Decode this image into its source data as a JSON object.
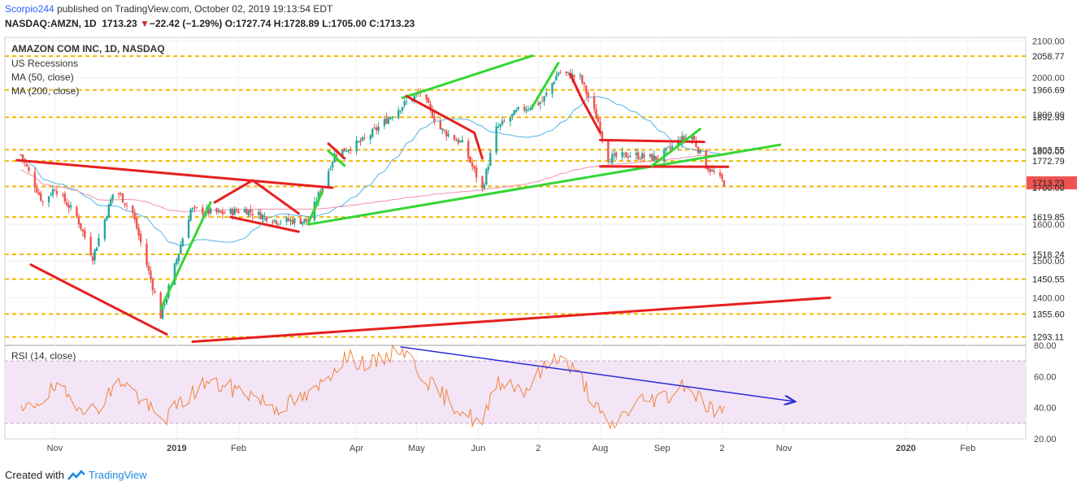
{
  "header": {
    "user": "Scorpio244",
    "published_text": "published on TradingView.com, October 02, 2019 19:13:54 EDT",
    "symbol": "NASDAQ:AMZN, 1D",
    "last": "1713.23",
    "change": "−22.42 (−1.29%)",
    "change_arrow": "▼",
    "o_label": "O:",
    "o_value": "1727.74",
    "h_label": "H:",
    "h_value": "1728.89",
    "l_label": "L:",
    "l_value": "1705.00",
    "c_label": "C:",
    "c_value": "1713.23"
  },
  "legend": {
    "title": "AMAZON COM INC, 1D, NASDAQ",
    "items": [
      "US Recessions",
      "MA (50, close)",
      "MA (200, close)"
    ]
  },
  "rsi_legend": "RSI (14, close)",
  "footer": {
    "created_with": "Created with",
    "brand": "TradingView"
  },
  "colors": {
    "up": "#26a69a",
    "down": "#ef5350",
    "ma50": "#4fb3e8",
    "ma200": "#f48fb1",
    "green_line": "#33d633",
    "red_line": "#e62020",
    "level": "#f5b800",
    "rsi_line": "#f0843c",
    "rsi_band": "#f3e5f5",
    "blue_trend": "#2b2bd6"
  },
  "chart_data": [
    {
      "type": "candlestick",
      "title": "AMAZON COM INC, 1D, NASDAQ",
      "ylim": [
        1270,
        2110
      ],
      "y_ticks": [
        1400,
        1500,
        1600,
        1700,
        1800,
        1900,
        2000,
        2100
      ],
      "y_tick_labels": [
        "1400.00",
        "1500.00",
        "1600.00",
        "1700.00",
        "1800.00",
        "1900.00",
        "2000.00",
        "2100.00"
      ],
      "x_tick_labels": [
        "Nov",
        "2019",
        "Feb",
        "Apr",
        "May",
        "Jun",
        "2",
        "Aug",
        "Sep",
        "2",
        "Nov",
        "2020",
        "Feb"
      ],
      "price_levels": [
        2058.77,
        1966.69,
        1892.33,
        1803.55,
        1772.79,
        1703.71,
        1619.85,
        1518.24,
        1450.55,
        1355.6,
        1293.11
      ],
      "price_level_labels": [
        "2058.77",
        "1966.69",
        "1892.33",
        "1803.55",
        "1772.79",
        "1703.71",
        "1619.85",
        "1518.24",
        "1450.55",
        "1355.60",
        "1293.11"
      ],
      "last_close": 1713.23,
      "close_path": {
        "x": [
          "2018-10-15",
          "2018-10-26",
          "2018-11-01",
          "2018-11-12",
          "2018-11-20",
          "2018-12-01",
          "2018-12-10",
          "2018-12-24",
          "2019-01-08",
          "2019-01-23",
          "2019-02-04",
          "2019-02-20",
          "2019-03-08",
          "2019-03-21",
          "2019-04-05",
          "2019-04-23",
          "2019-05-03",
          "2019-05-13",
          "2019-05-24",
          "2019-06-03",
          "2019-06-10",
          "2019-06-21",
          "2019-07-03",
          "2019-07-11",
          "2019-07-22",
          "2019-07-31",
          "2019-08-05",
          "2019-08-16",
          "2019-08-30",
          "2019-09-10",
          "2019-09-16",
          "2019-09-23",
          "2019-10-02"
        ],
        "y": [
          1790,
          1660,
          1700,
          1620,
          1510,
          1700,
          1630,
          1350,
          1640,
          1630,
          1640,
          1610,
          1610,
          1790,
          1830,
          1920,
          1960,
          1860,
          1820,
          1695,
          1860,
          1910,
          1935,
          2015,
          2000,
          1880,
          1780,
          1790,
          1780,
          1830,
          1840,
          1760,
          1713.23
        ]
      },
      "indicators": [
        "MA (50, close)",
        "MA (200, close)"
      ]
    },
    {
      "type": "line",
      "title": "RSI (14, close)",
      "ylim": [
        20,
        80
      ],
      "y_ticks": [
        20,
        40,
        60,
        80
      ],
      "y_tick_labels": [
        "20.00",
        "40.00",
        "60.00",
        "80.00"
      ],
      "band": [
        30,
        70
      ],
      "series": [
        {
          "x": [
            "2018-10-15",
            "2018-11-01",
            "2018-11-20",
            "2018-12-05",
            "2018-12-24",
            "2019-01-15",
            "2019-02-05",
            "2019-02-20",
            "2019-03-10",
            "2019-03-25",
            "2019-04-10",
            "2019-04-23",
            "2019-05-10",
            "2019-06-03",
            "2019-06-10",
            "2019-06-25",
            "2019-07-10",
            "2019-07-22",
            "2019-08-05",
            "2019-08-20",
            "2019-09-05",
            "2019-09-12",
            "2019-09-25",
            "2019-10-02"
          ],
          "y": [
            36,
            52,
            38,
            58,
            31,
            56,
            50,
            40,
            48,
            72,
            68,
            79,
            52,
            28,
            58,
            52,
            74,
            60,
            26,
            44,
            48,
            56,
            40,
            36
          ]
        }
      ]
    }
  ]
}
